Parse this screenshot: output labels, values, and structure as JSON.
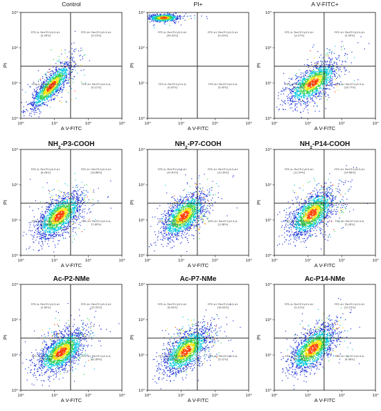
{
  "chart_data": [
    {
      "type": "scatter",
      "title": "Control",
      "title_html": "Control",
      "xlabel": "A V-FITC",
      "ylabel": "PI",
      "xscale": "log",
      "yscale": "log",
      "xlim": [
        1,
        1000
      ],
      "ylim": [
        1,
        1000
      ],
      "x_ticks": [
        "10⁰",
        "10¹",
        "10²",
        "10³"
      ],
      "y_ticks": [
        "10⁰",
        "10¹",
        "10²",
        "10³"
      ],
      "gate": {
        "x": 30,
        "y": 30
      },
      "quadrants": [
        {
          "label": "FITC-A- PerCP-Cy5-5-A+",
          "value": "[5.26%]"
        },
        {
          "label": "FITC-A+ PerCP-Cy5-5-A+",
          "value": "[0.19%]"
        },
        {
          "label": "FITC-A- PerCP-Cy5-5-A-",
          "value": "[96.34%]"
        },
        {
          "label": "FITC-A+ PerCP-Cy5-5-A-",
          "value": "[0.21%]"
        }
      ],
      "cloud": {
        "cx": 8,
        "cy": 8,
        "sx": 0.32,
        "sy": 0.35,
        "rho": 0.85,
        "n": 1400
      }
    },
    {
      "type": "scatter",
      "title": "PI+",
      "title_html": "PI+",
      "xlabel": "A V-FITC",
      "ylabel": "PI",
      "xscale": "log",
      "yscale": "log",
      "xlim": [
        1,
        1000
      ],
      "ylim": [
        1,
        1000
      ],
      "x_ticks": [
        "10⁰",
        "10¹",
        "10²",
        "10³"
      ],
      "y_ticks": [
        "10⁰",
        "10¹",
        "10²",
        "10³"
      ],
      "gate": {
        "x": 30,
        "y": 30
      },
      "quadrants": [
        {
          "label": "FITC-A- PerCP-Cy5-5-A+",
          "value": "[99.92%]"
        },
        {
          "label": "FITC-A+ PerCP-Cy5-5-A+",
          "value": "[0.03%]"
        },
        {
          "label": "FITC-A- PerCP-Cy5-5-A-",
          "value": "[0.05%]"
        },
        {
          "label": "FITC-A+ PerCP-Cy5-5-A-",
          "value": "[0.00%]"
        }
      ],
      "cloud": {
        "cx": 3,
        "cy": 700,
        "sx": 0.25,
        "sy": 0.06,
        "rho": 0.1,
        "n": 600
      }
    },
    {
      "type": "scatter",
      "title": "A V-FITC+",
      "title_html": "A V-FITC+",
      "xlabel": "A V-FITC",
      "ylabel": "PI",
      "xscale": "log",
      "yscale": "log",
      "xlim": [
        1,
        1000
      ],
      "ylim": [
        1,
        1000
      ],
      "x_ticks": [
        "10⁰",
        "10¹",
        "10²",
        "10³"
      ],
      "y_ticks": [
        "10⁰",
        "10¹",
        "10²",
        "10³"
      ],
      "gate": {
        "x": 30,
        "y": 30
      },
      "quadrants": [
        {
          "label": "FITC-A- PerCP-Cy5-5-A+",
          "value": "[3.27%]"
        },
        {
          "label": "FITC-A+ PerCP-Cy5-5-A+",
          "value": "[2.00%]"
        },
        {
          "label": "FITC-A- PerCP-Cy5-5-A-",
          "value": "[77.39%]"
        },
        {
          "label": "FITC-A+ PerCP-Cy5-5-A-",
          "value": "[16.77%]"
        }
      ],
      "cloud": {
        "cx": 14,
        "cy": 10,
        "sx": 0.38,
        "sy": 0.3,
        "rho": 0.65,
        "n": 1600
      }
    },
    {
      "type": "scatter",
      "title": "NH2-P3-COOH",
      "title_html": "NH<tspan baseline-shift='sub' font-size='6.5'>2</tspan>-P3-COOH",
      "xlabel": "A V-FITC",
      "ylabel": "PI",
      "xscale": "log",
      "yscale": "log",
      "xlim": [
        1,
        1000
      ],
      "ylim": [
        1,
        1000
      ],
      "x_ticks": [
        "10⁰",
        "10¹",
        "10²",
        "10³"
      ],
      "y_ticks": [
        "10⁰",
        "10¹",
        "10²",
        "10³"
      ],
      "gate": {
        "x": 30,
        "y": 30
      },
      "quadrants": [
        {
          "label": "FITC-A- PerCP-Cy5-5-A+",
          "value": "[8.28%]"
        },
        {
          "label": "FITC-A+ PerCP-Cy5-5-A+",
          "value": "[16.88%]"
        },
        {
          "label": "FITC-A- PerCP-Cy5-5-A-",
          "value": "[67.04%]"
        },
        {
          "label": "FITC-A+ PerCP-Cy5-5-A-",
          "value": "[7.80%]"
        }
      ],
      "cloud": {
        "cx": 14,
        "cy": 13,
        "sx": 0.34,
        "sy": 0.32,
        "rho": 0.6,
        "n": 1800
      }
    },
    {
      "type": "scatter",
      "title": "NH2-P7-COOH",
      "title_html": "NH<tspan baseline-shift='sub' font-size='6.5'>2</tspan>-P7-COOH",
      "xlabel": "A V-FITC",
      "ylabel": "PI",
      "xscale": "log",
      "yscale": "log",
      "xlim": [
        1,
        1000
      ],
      "ylim": [
        1,
        1000
      ],
      "x_ticks": [
        "10⁰",
        "10¹",
        "10²",
        "10³"
      ],
      "y_ticks": [
        "10⁰",
        "10¹",
        "10²",
        "10³"
      ],
      "gate": {
        "x": 30,
        "y": 30
      },
      "quadrants": [
        {
          "label": "FITC-A- PerCP-Cy5-5-A+",
          "value": "[10.61%]"
        },
        {
          "label": "FITC-A+ PerCP-Cy5-5-A+",
          "value": "[10.30%]"
        },
        {
          "label": "FITC-A- PerCP-Cy5-5-A-",
          "value": "[75.68%]"
        },
        {
          "label": "FITC-A+ PerCP-Cy5-5-A-",
          "value": "[3.38%]"
        }
      ],
      "cloud": {
        "cx": 12,
        "cy": 13,
        "sx": 0.33,
        "sy": 0.32,
        "rho": 0.6,
        "n": 1700
      }
    },
    {
      "type": "scatter",
      "title": "NH2-P14-COOH",
      "title_html": "NH<tspan baseline-shift='sub' font-size='6.5'>2</tspan>-P14-COOH",
      "xlabel": "A V-FITC",
      "ylabel": "PI",
      "xscale": "log",
      "yscale": "log",
      "xlim": [
        1,
        1000
      ],
      "ylim": [
        1,
        1000
      ],
      "x_ticks": [
        "10⁰",
        "10¹",
        "10²",
        "10³"
      ],
      "y_ticks": [
        "10⁰",
        "10¹",
        "10²",
        "10³"
      ],
      "gate": {
        "x": 30,
        "y": 30
      },
      "quadrants": [
        {
          "label": "FITC-A- PerCP-Cy5-5-A+",
          "value": "[12.54%]"
        },
        {
          "label": "FITC-A+ PerCP-Cy5-5-A+",
          "value": "[14.66%]"
        },
        {
          "label": "FITC-A- PerCP-Cy5-5-A-",
          "value": "[67.51%]"
        },
        {
          "label": "FITC-A+ PerCP-Cy5-5-A-",
          "value": "[5.28%]"
        }
      ],
      "cloud": {
        "cx": 13,
        "cy": 15,
        "sx": 0.34,
        "sy": 0.33,
        "rho": 0.6,
        "n": 1800
      }
    },
    {
      "type": "scatter",
      "title": "Ac-P2-NMe",
      "title_html": "Ac-P2-NMe",
      "xlabel": "A V-FITC",
      "ylabel": "PI",
      "xscale": "log",
      "yscale": "log",
      "xlim": [
        1,
        1000
      ],
      "ylim": [
        1,
        1000
      ],
      "x_ticks": [
        "10⁰",
        "10¹",
        "10²",
        "10³"
      ],
      "y_ticks": [
        "10⁰",
        "10¹",
        "10²",
        "10³"
      ],
      "gate": {
        "x": 30,
        "y": 30
      },
      "quadrants": [
        {
          "label": "FITC-A- PerCP-Cy5-5-A+",
          "value": "[2.60%]"
        },
        {
          "label": "FITC-A+ PerCP-Cy5-5-A+",
          "value": "[15.55%]"
        },
        {
          "label": "FITC-A- PerCP-Cy5-5-A-",
          "value": "[58.95%]"
        },
        {
          "label": "FITC-A+ PerCP-Cy5-5-A-",
          "value": "[22.89%]"
        }
      ],
      "cloud": {
        "cx": 16,
        "cy": 12,
        "sx": 0.36,
        "sy": 0.31,
        "rho": 0.6,
        "n": 1900
      }
    },
    {
      "type": "scatter",
      "title": "Ac-P7-NMe",
      "title_html": "Ac-P7-NMe",
      "xlabel": "A V-FITC",
      "ylabel": "PI",
      "xscale": "log",
      "yscale": "log",
      "xlim": [
        1,
        1000
      ],
      "ylim": [
        1,
        1000
      ],
      "x_ticks": [
        "10⁰",
        "10¹",
        "10²",
        "10³"
      ],
      "y_ticks": [
        "10⁰",
        "10¹",
        "10²",
        "10³"
      ],
      "gate": {
        "x": 30,
        "y": 30
      },
      "quadrants": [
        {
          "label": "FITC-A- PerCP-Cy5-5-A+",
          "value": "[6.90%]"
        },
        {
          "label": "FITC-A+ PerCP-Cy5-5-A+",
          "value": "[16.05%]"
        },
        {
          "label": "FITC-A- PerCP-Cy5-5-A-",
          "value": "[67.03%]"
        },
        {
          "label": "FITC-A+ PerCP-Cy5-5-A-",
          "value": "[9.22%]"
        }
      ],
      "cloud": {
        "cx": 14,
        "cy": 13,
        "sx": 0.35,
        "sy": 0.32,
        "rho": 0.6,
        "n": 1800
      }
    },
    {
      "type": "scatter",
      "title": "Ac-P14-NMe",
      "title_html": "Ac-P14-NMe",
      "xlabel": "A V-FITC",
      "ylabel": "PI",
      "xscale": "log",
      "yscale": "log",
      "xlim": [
        1,
        1000
      ],
      "ylim": [
        1,
        1000
      ],
      "x_ticks": [
        "10⁰",
        "10¹",
        "10²",
        "10³"
      ],
      "y_ticks": [
        "10⁰",
        "10¹",
        "10²",
        "10³"
      ],
      "gate": {
        "x": 30,
        "y": 30
      },
      "quadrants": [
        {
          "label": "FITC-A- PerCP-Cy5-5-A+",
          "value": "[5.21%]"
        },
        {
          "label": "FITC-A+ PerCP-Cy5-5-A+",
          "value": "[15.25%]"
        },
        {
          "label": "FITC-A- PerCP-Cy5-5-A-",
          "value": "[67.70%]"
        },
        {
          "label": "FITC-A+ PerCP-Cy5-5-A-",
          "value": "[4.98%]"
        }
      ],
      "cloud": {
        "cx": 14,
        "cy": 15,
        "sx": 0.35,
        "sy": 0.33,
        "rho": 0.6,
        "n": 1800
      }
    }
  ],
  "colors": {
    "low": "#1a2fd6",
    "mid1": "#00c8e0",
    "mid2": "#33d14a",
    "mid3": "#f5e400",
    "high": "#ff3b00",
    "axis": "#111111"
  }
}
